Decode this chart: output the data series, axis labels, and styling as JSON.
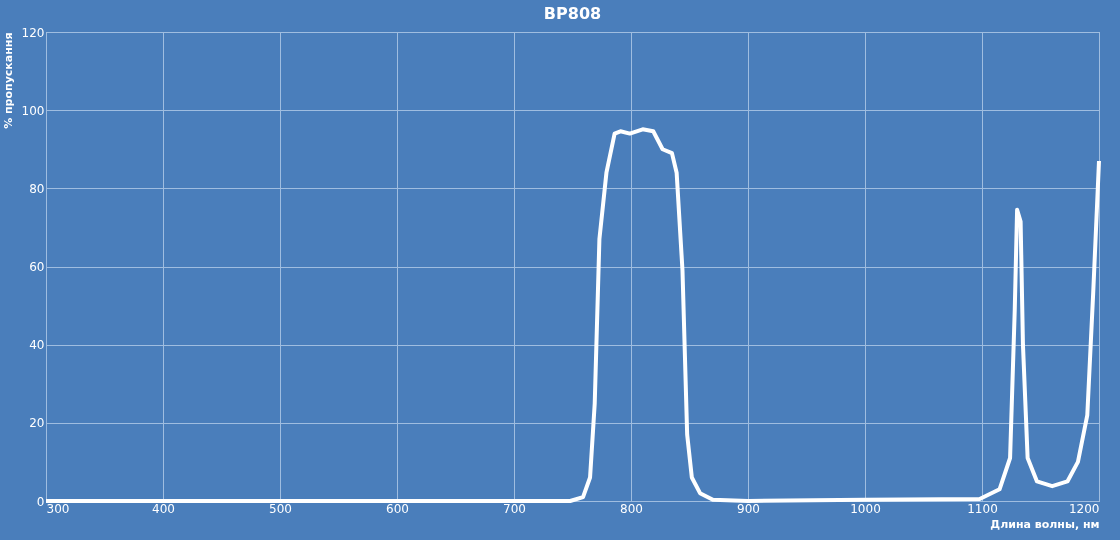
{
  "chart_data": {
    "type": "line",
    "title": "BP808",
    "xlabel": "Длина волны, нм",
    "ylabel": "% пропускання",
    "x": [
      300,
      500,
      700,
      748,
      759,
      765,
      769,
      773,
      779,
      786,
      791,
      799,
      810,
      819,
      827,
      835,
      839,
      844,
      848,
      852,
      859,
      870,
      900,
      1000,
      1098,
      1115,
      1124,
      1128,
      1130,
      1133,
      1135,
      1139,
      1147,
      1160,
      1173,
      1182,
      1190,
      1195,
      1200
    ],
    "series": [
      {
        "color": "#ffffff",
        "values": [
          0,
          0,
          0,
          0,
          1,
          6,
          25,
          67,
          84,
          94,
          94.6,
          94,
          95.1,
          94.6,
          90,
          89,
          84,
          59,
          17,
          6,
          2,
          0.3,
          0,
          0.3,
          0.5,
          3,
          11,
          49,
          74.5,
          71.5,
          40,
          11,
          5,
          3.8,
          5,
          10,
          22,
          53,
          87
        ]
      }
    ],
    "xlim": [
      300,
      1200
    ],
    "xticks": [
      300,
      400,
      500,
      600,
      700,
      800,
      900,
      1000,
      1100,
      1200
    ],
    "ylim": [
      0,
      120
    ],
    "yticks": [
      0,
      20,
      40,
      60,
      80,
      100,
      120
    ],
    "grid": true,
    "marker": "none",
    "line_style": "solid"
  }
}
